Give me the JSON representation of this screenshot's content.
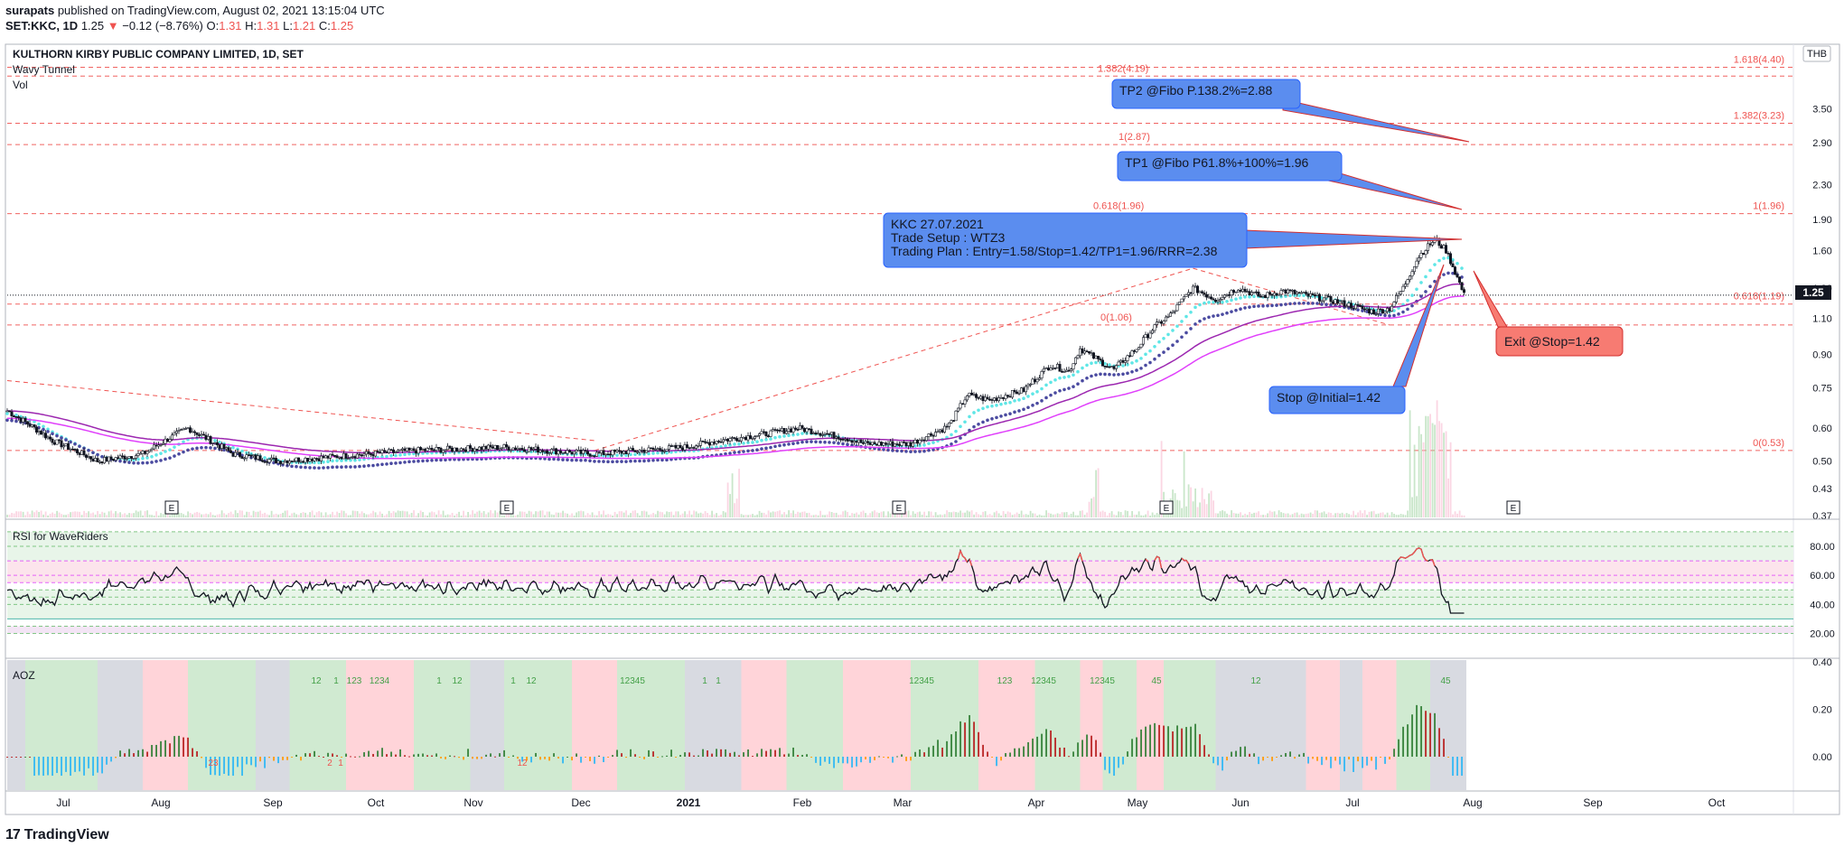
{
  "header": {
    "publisher": "surapats",
    "published_text": "published on TradingView.com, August 02, 2021 13:15:04 UTC",
    "symbol": "SET:KKC, 1D",
    "last": "1.25",
    "change": "−0.12 (−8.76%)",
    "o_label": "O:",
    "o": "1.31",
    "h_label": "H:",
    "h": "1.31",
    "l_label": "L:",
    "l": "1.21",
    "c_label": "C:",
    "c": "1.25"
  },
  "panel": {
    "title": "KULTHORN KIRBY PUBLIC COMPANY LIMITED, 1D, SET",
    "indicators": [
      "Wavy Tunnel",
      "Vol"
    ],
    "currency": "THB",
    "last_price_label": "1.25"
  },
  "colors": {
    "up": "#ffffff",
    "down": "#131722",
    "fib": "#ef5350",
    "tunnel_fast": "#5ee6e6",
    "tunnel_slow": "#4a4aa0",
    "ema_a": "#9c27b0",
    "ema_b": "#e040fb",
    "vol": "#a5d6a7",
    "rsi_line": "#131722",
    "rsi_hot": "#ef5350",
    "callout_blue": "#5b8def",
    "callout_red": "#f77b72",
    "aoz_green": "#c8e6c9",
    "aoz_red": "#ffcdd2",
    "aoz_gray": "#d1d4dc"
  },
  "chart_data": {
    "type": "candlestick",
    "x_ticks": [
      "Jul",
      "Aug",
      "Sep",
      "Oct",
      "Nov",
      "Dec",
      "2021",
      "Feb",
      "Mar",
      "Apr",
      "May",
      "Jun",
      "Jul",
      "Aug",
      "Sep",
      "Oct"
    ],
    "price_axis": [
      "3.50",
      "2.90",
      "2.30",
      "1.90",
      "1.60",
      "1.30",
      "1.10",
      "0.90",
      "0.75",
      "0.60",
      "0.50",
      "0.43",
      "0.37"
    ],
    "price_axis_values": [
      3.5,
      2.9,
      2.3,
      1.9,
      1.6,
      1.3,
      1.1,
      0.9,
      0.75,
      0.6,
      0.5,
      0.43,
      0.37
    ],
    "fib_lines": [
      {
        "label": "1.618(4.40)",
        "value": 4.4
      },
      {
        "label": "1.382(4.19)",
        "value": 4.19
      },
      {
        "label": "1.382(3.23)",
        "value": 3.23
      },
      {
        "label": "1(2.87)",
        "value": 2.87
      },
      {
        "label": "0.618(1.96)",
        "value": 1.96
      },
      {
        "label": "1(1.96)",
        "value": 1.96
      },
      {
        "label": "0.618(1.19)",
        "value": 1.19
      },
      {
        "label": "0(1.06)",
        "value": 1.06
      },
      {
        "label": "0(0.53)",
        "value": 0.53
      }
    ],
    "earnings_markers": [
      "E",
      "E",
      "E",
      "E",
      "E"
    ],
    "annotations": [
      {
        "name": "tp2",
        "text": "TP2 @Fibo P.138.2%=2.88",
        "color": "blue"
      },
      {
        "name": "tp1",
        "text": "TP1 @Fibo P61.8%+100%=1.96",
        "color": "blue"
      },
      {
        "name": "plan",
        "lines": [
          "KKC 27.07.2021",
          "Trade Setup : WTZ3",
          "Trading Plan : Entry=1.58/Stop=1.42/TP1=1.96/RRR=2.38"
        ],
        "color": "blue"
      },
      {
        "name": "stop",
        "text": "Stop @Initial=1.42",
        "color": "blue"
      },
      {
        "name": "exit",
        "text": "Exit @Stop=1.42",
        "color": "red"
      }
    ],
    "price_keyframes": [
      [
        0,
        0.66
      ],
      [
        20,
        0.56
      ],
      [
        40,
        0.5
      ],
      [
        60,
        0.52
      ],
      [
        70,
        0.56
      ],
      [
        80,
        0.6
      ],
      [
        100,
        0.52
      ],
      [
        120,
        0.5
      ],
      [
        160,
        0.52
      ],
      [
        180,
        0.53
      ],
      [
        220,
        0.54
      ],
      [
        260,
        0.52
      ],
      [
        300,
        0.54
      ],
      [
        315,
        0.56
      ],
      [
        335,
        0.58
      ],
      [
        350,
        0.6
      ],
      [
        370,
        0.57
      ],
      [
        380,
        0.55
      ],
      [
        400,
        0.55
      ],
      [
        415,
        0.6
      ],
      [
        418,
        0.62
      ],
      [
        425,
        0.72
      ],
      [
        435,
        0.7
      ],
      [
        450,
        0.74
      ],
      [
        462,
        0.85
      ],
      [
        470,
        0.82
      ],
      [
        475,
        0.93
      ],
      [
        485,
        0.86
      ],
      [
        490,
        0.83
      ],
      [
        500,
        0.93
      ],
      [
        508,
        1.05
      ],
      [
        515,
        1.12
      ],
      [
        525,
        1.3
      ],
      [
        535,
        1.22
      ],
      [
        545,
        1.3
      ],
      [
        555,
        1.24
      ],
      [
        565,
        1.28
      ],
      [
        575,
        1.25
      ],
      [
        585,
        1.22
      ],
      [
        595,
        1.18
      ],
      [
        605,
        1.14
      ],
      [
        612,
        1.16
      ],
      [
        618,
        1.3
      ],
      [
        625,
        1.55
      ],
      [
        632,
        1.7
      ],
      [
        637,
        1.6
      ],
      [
        641,
        1.42
      ],
      [
        645,
        1.25
      ]
    ],
    "rsi": {
      "title": "RSI for WaveRiders",
      "axis": [
        "80.00",
        "60.00",
        "40.00",
        "20.00"
      ],
      "axis_values": [
        80,
        60,
        40,
        20
      ],
      "bands": [
        90,
        80,
        70,
        60,
        55,
        50,
        45,
        40,
        30,
        25,
        20
      ]
    },
    "aoz": {
      "title": "AOZ",
      "axis": [
        "0.40",
        "0.20",
        "0.00"
      ],
      "axis_values": [
        0.4,
        0.2,
        0.0
      ],
      "labels": [
        "12",
        "1",
        "123",
        "1234",
        "1",
        "12",
        "1",
        "12",
        "12345",
        "1",
        "1",
        "12345",
        "123",
        "12345",
        "12345",
        "45",
        "12",
        "45",
        "2",
        "1",
        "23",
        "12"
      ]
    }
  },
  "brand": "TradingView"
}
